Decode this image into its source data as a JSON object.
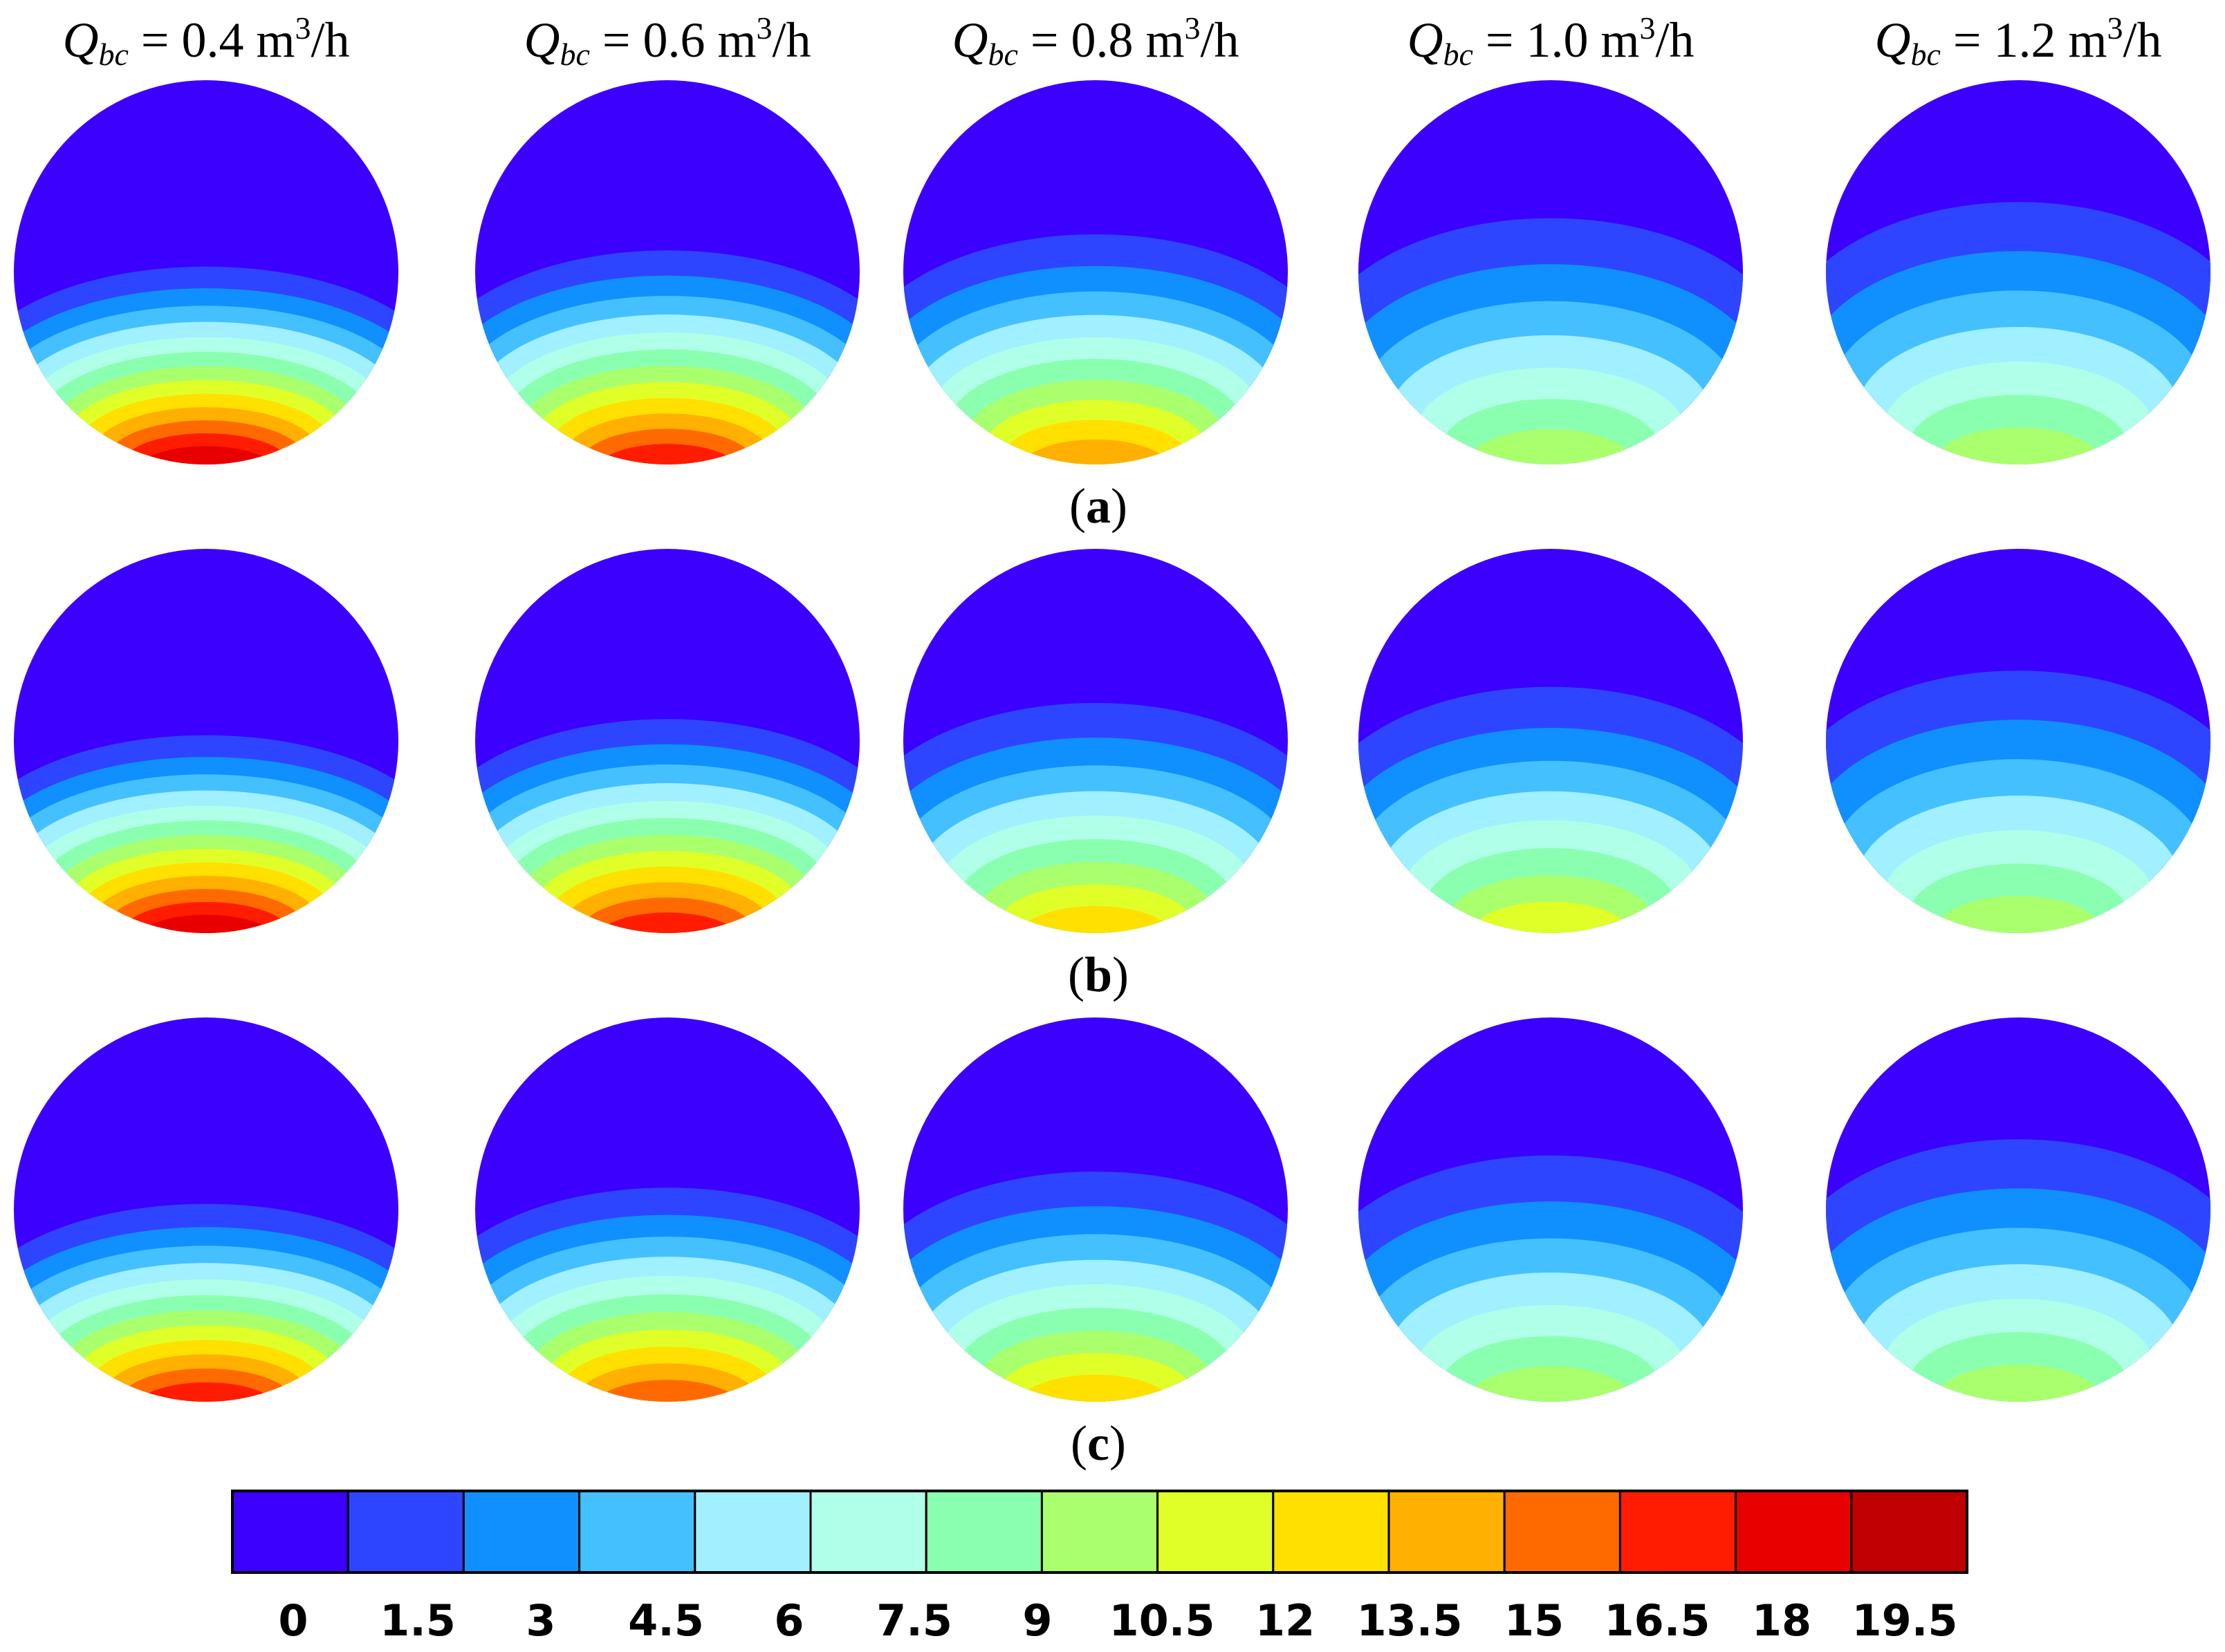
{
  "figure": {
    "columns": [
      {
        "symbol": "Q",
        "subscript": "bc",
        "value_text": " = 0.4 m",
        "sup": "3",
        "unit_tail": "/h",
        "q": 0.4
      },
      {
        "symbol": "Q",
        "subscript": "bc",
        "value_text": " = 0.6 m",
        "sup": "3",
        "unit_tail": "/h",
        "q": 0.6
      },
      {
        "symbol": "Q",
        "subscript": "bc",
        "value_text": " = 0.8 m",
        "sup": "3",
        "unit_tail": "/h",
        "q": 0.8
      },
      {
        "symbol": "Q",
        "subscript": "bc",
        "value_text": " = 1.0 m",
        "sup": "3",
        "unit_tail": "/h",
        "q": 1.0
      },
      {
        "symbol": "Q",
        "subscript": "bc",
        "value_text": " = 1.2 m",
        "sup": "3",
        "unit_tail": "/h",
        "q": 1.2
      }
    ],
    "rows": [
      {
        "label_open": "(",
        "label_letter": "a",
        "label_close": ")",
        "max_values": [
          19.5,
          18.0,
          14.5,
          11.0,
          10.0
        ]
      },
      {
        "label_open": "(",
        "label_letter": "b",
        "label_close": ")",
        "max_values": [
          19.0,
          17.5,
          14.0,
          11.5,
          10.5
        ]
      },
      {
        "label_open": "(",
        "label_letter": "c",
        "label_close": ")",
        "max_values": [
          18.0,
          16.5,
          14.0,
          11.0,
          10.0
        ]
      }
    ]
  },
  "colorbar": {
    "tick_labels": [
      "0",
      "1.5",
      "3",
      "4.5",
      "6",
      "7.5",
      "9",
      "10.5",
      "12",
      "13.5",
      "15",
      "16.5",
      "18",
      "19.5"
    ],
    "colors": [
      "#3c00ff",
      "#2e45ff",
      "#1090ff",
      "#44c0ff",
      "#a0f0ff",
      "#b0ffe8",
      "#8affb0",
      "#aaff6c",
      "#e0ff28",
      "#ffe000",
      "#ffb000",
      "#ff6a00",
      "#ff1c00",
      "#e80000",
      "#c00000"
    ],
    "band_step": 1.5
  }
}
